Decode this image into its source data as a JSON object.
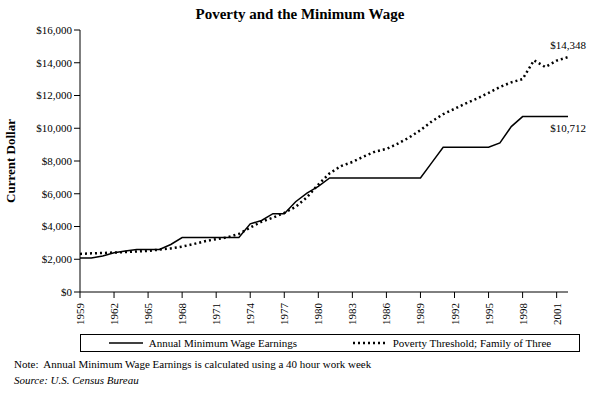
{
  "chart_data": {
    "type": "line",
    "title": "Poverty and the Minimum Wage",
    "y_label": "Current Dollar",
    "x": [
      1959,
      1960,
      1961,
      1962,
      1963,
      1964,
      1965,
      1966,
      1967,
      1968,
      1969,
      1970,
      1971,
      1972,
      1973,
      1974,
      1975,
      1976,
      1977,
      1978,
      1979,
      1980,
      1981,
      1982,
      1983,
      1984,
      1985,
      1986,
      1987,
      1988,
      1989,
      1990,
      1991,
      1992,
      1993,
      1994,
      1995,
      1996,
      1997,
      1998,
      1999,
      2000,
      2001,
      2002
    ],
    "series": [
      {
        "name": "Annual Minimum Wage Earnings",
        "color": "#000000",
        "line_style": "solid",
        "values": [
          2080,
          2080,
          2200,
          2392,
          2500,
          2600,
          2600,
          2600,
          2900,
          3328,
          3328,
          3328,
          3328,
          3328,
          3328,
          4160,
          4368,
          4784,
          4784,
          5512,
          6032,
          6448,
          6968,
          6968,
          6968,
          6968,
          6968,
          6968,
          6968,
          6968,
          6968,
          7904,
          8840,
          8840,
          8840,
          8840,
          8840,
          9100,
          10100,
          10712,
          10712,
          10712,
          10712,
          10712
        ]
      },
      {
        "name": "Poverty Threshold; Family of Three",
        "color": "#000000",
        "line_style": "dotted",
        "values": [
          2324,
          2359,
          2383,
          2412,
          2442,
          2473,
          2514,
          2588,
          2661,
          2774,
          2924,
          3099,
          3229,
          3339,
          3548,
          3936,
          4293,
          4540,
          4833,
          5201,
          5784,
          6565,
          7250,
          7693,
          7938,
          8277,
          8573,
          8737,
          9056,
          9435,
          9885,
          10419,
          10860,
          11186,
          11522,
          11821,
          12158,
          12516,
          12802,
          13003,
          14150,
          13738,
          14128,
          14348
        ]
      }
    ],
    "xlim": [
      1959,
      2002
    ],
    "xticks": [
      1959,
      1962,
      1965,
      1968,
      1971,
      1974,
      1977,
      1980,
      1983,
      1986,
      1989,
      1992,
      1995,
      1998,
      2001
    ],
    "ylim": [
      0,
      16000
    ],
    "yticks": [
      {
        "value": 0,
        "label": "$0"
      },
      {
        "value": 2000,
        "label": "$2,000"
      },
      {
        "value": 4000,
        "label": "$4,000"
      },
      {
        "value": 6000,
        "label": "$6,000"
      },
      {
        "value": 8000,
        "label": "$8,000"
      },
      {
        "value": 10000,
        "label": "$10,000"
      },
      {
        "value": 12000,
        "label": "$12,000"
      },
      {
        "value": 14000,
        "label": "$14,000"
      },
      {
        "value": 16000,
        "label": "$16,000"
      }
    ],
    "annotations": [
      {
        "text": "$14,348",
        "x": 2002,
        "y": 14348
      },
      {
        "text": "$10,712",
        "x": 2002,
        "y": 10712
      }
    ],
    "grid": false,
    "legend": "bottom",
    "notes": [
      "Note:  Annual Minimum Wage Earnings is calculated using a 40 hour work week",
      "Source: U.S. Census Bureau"
    ]
  }
}
